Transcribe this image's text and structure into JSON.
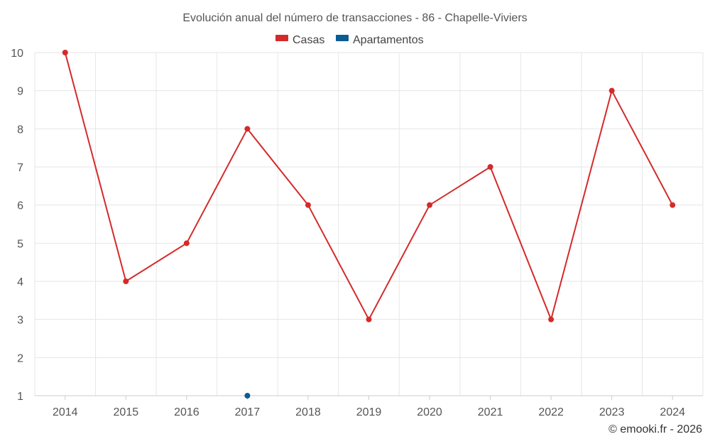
{
  "chart_data": {
    "type": "line",
    "title": "Evolución anual del número de transacciones - 86 - Chapelle-Viviers",
    "categories": [
      "2014",
      "2015",
      "2016",
      "2017",
      "2018",
      "2019",
      "2020",
      "2021",
      "2022",
      "2023",
      "2024"
    ],
    "series": [
      {
        "name": "Casas",
        "color": "#d42a2a",
        "values": [
          10,
          4,
          5,
          8,
          6,
          3,
          6,
          7,
          3,
          9,
          6
        ]
      },
      {
        "name": "Apartamentos",
        "color": "#0b5c92",
        "values": [
          null,
          null,
          null,
          1,
          null,
          null,
          null,
          null,
          null,
          null,
          null
        ]
      }
    ],
    "xlabel": "",
    "ylabel": "",
    "ylim": [
      1,
      10
    ],
    "yticks": [
      "1",
      "2",
      "3",
      "4",
      "5",
      "6",
      "7",
      "8",
      "9",
      "10"
    ],
    "legend": "top-center",
    "grid": true
  },
  "credit": "© emooki.fr - 2026"
}
